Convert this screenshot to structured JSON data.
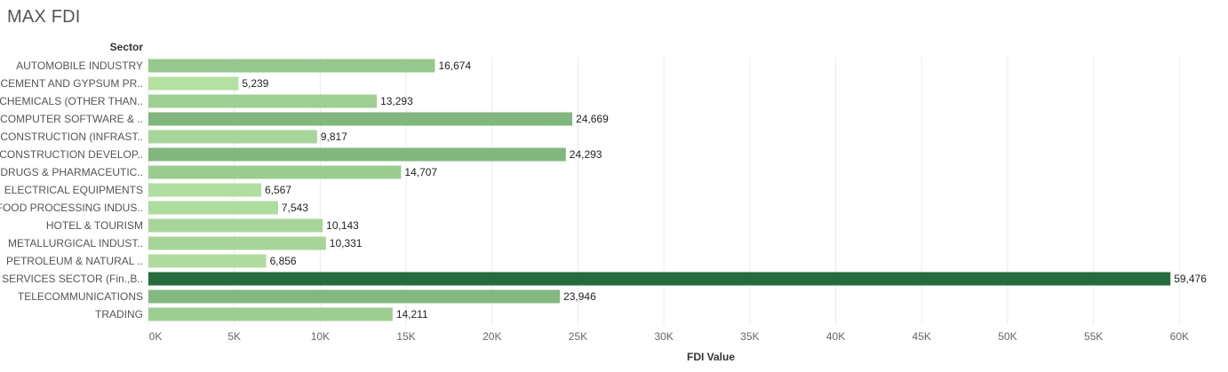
{
  "title": "MAX FDI",
  "chart_data": {
    "type": "bar",
    "orientation": "horizontal",
    "title": "MAX FDI",
    "ylabel": "Sector",
    "xlabel": "FDI Value",
    "xlim": [
      0,
      62000
    ],
    "grid": true,
    "categories": [
      "AUTOMOBILE INDUSTRY",
      "CEMENT AND GYPSUM PR..",
      "CHEMICALS (OTHER THAN..",
      "COMPUTER SOFTWARE & ..",
      "CONSTRUCTION (INFRAST..",
      "CONSTRUCTION DEVELOP..",
      "DRUGS & PHARMACEUTIC..",
      "ELECTRICAL EQUIPMENTS",
      "FOOD PROCESSING INDUS..",
      "HOTEL & TOURISM",
      "METALLURGICAL INDUST..",
      "PETROLEUM & NATURAL ..",
      "SERVICES SECTOR (Fin.,B..",
      "TELECOMMUNICATIONS",
      "TRADING"
    ],
    "values": [
      16674,
      5239,
      13293,
      24669,
      9817,
      24293,
      14707,
      6567,
      7543,
      10143,
      10331,
      6856,
      59476,
      23946,
      14211
    ],
    "value_labels": [
      "16,674",
      "5,239",
      "13,293",
      "24,669",
      "9,817",
      "24,293",
      "14,707",
      "6,567",
      "7,543",
      "10,143",
      "10,331",
      "6,856",
      "59,476",
      "23,946",
      "14,211"
    ],
    "ticks": [
      0,
      5000,
      10000,
      15000,
      20000,
      25000,
      30000,
      35000,
      40000,
      45000,
      50000,
      55000,
      60000
    ],
    "tick_labels": [
      "0K",
      "5K",
      "10K",
      "15K",
      "20K",
      "25K",
      "30K",
      "35K",
      "40K",
      "45K",
      "50K",
      "55K",
      "60K"
    ],
    "color_scale": {
      "low": "#b4e0a2",
      "high": "#256b3e"
    }
  }
}
